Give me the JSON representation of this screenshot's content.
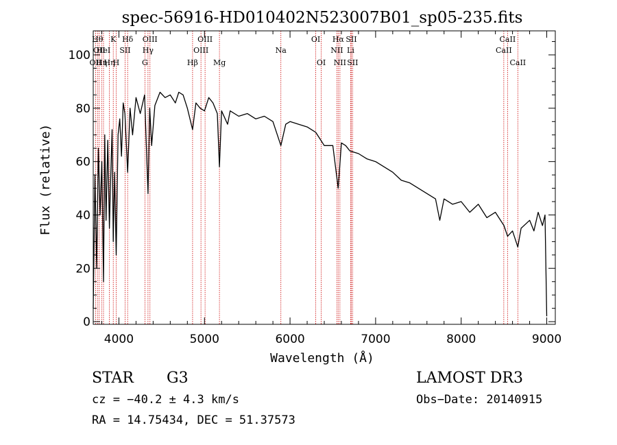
{
  "chart_data": {
    "type": "line",
    "title": "spec-56916-HD010402N523007B01_sp05-235.fits",
    "xlabel": "Wavelength (Å)",
    "ylabel": "Flux (relative)",
    "xlim": [
      3700,
      9100
    ],
    "ylim": [
      -1,
      109
    ],
    "x_ticks": [
      4000,
      5000,
      6000,
      7000,
      8000,
      9000
    ],
    "x_tick_labels": [
      "4000",
      "5000",
      "6000",
      "7000",
      "8000",
      "9000"
    ],
    "y_ticks": [
      0,
      20,
      40,
      60,
      80,
      100
    ],
    "y_tick_labels": [
      "0",
      "20",
      "40",
      "60",
      "80",
      "100"
    ],
    "series": [
      {
        "name": "flux",
        "x": [
          3700,
          3720,
          3740,
          3760,
          3780,
          3800,
          3820,
          3835,
          3850,
          3870,
          3889,
          3900,
          3920,
          3934,
          3950,
          3968,
          3990,
          4010,
          4030,
          4050,
          4070,
          4102,
          4130,
          4160,
          4200,
          4250,
          4300,
          4340,
          4360,
          4383,
          4420,
          4480,
          4540,
          4600,
          4660,
          4700,
          4750,
          4800,
          4861,
          4900,
          4950,
          5000,
          5050,
          5100,
          5150,
          5175,
          5200,
          5270,
          5300,
          5400,
          5500,
          5600,
          5700,
          5800,
          5893,
          5950,
          6000,
          6100,
          6200,
          6300,
          6360,
          6400,
          6500,
          6563,
          6600,
          6650,
          6700,
          6800,
          6900,
          7000,
          7100,
          7200,
          7300,
          7400,
          7500,
          7600,
          7700,
          7750,
          7800,
          7900,
          8000,
          8100,
          8200,
          8300,
          8400,
          8500,
          8542,
          8600,
          8662,
          8700,
          8800,
          8850,
          8900,
          8950,
          8980,
          9000
        ],
        "values": [
          5,
          55,
          20,
          65,
          40,
          60,
          15,
          70,
          38,
          68,
          35,
          50,
          72,
          30,
          56,
          25,
          70,
          76,
          62,
          82,
          78,
          56,
          80,
          70,
          84,
          78,
          85,
          48,
          80,
          66,
          81,
          86,
          84,
          85,
          82,
          86,
          85,
          80,
          72,
          82,
          80,
          79,
          84,
          82,
          78,
          58,
          79,
          74,
          79,
          77,
          78,
          76,
          77,
          75,
          66,
          74,
          75,
          74,
          73,
          71,
          68,
          66,
          66,
          50,
          67,
          66,
          64,
          63,
          61,
          60,
          58,
          56,
          53,
          52,
          50,
          48,
          46,
          38,
          46,
          44,
          45,
          41,
          44,
          39,
          41,
          36,
          32,
          34,
          28,
          35,
          38,
          34,
          41,
          36,
          40,
          2
        ]
      }
    ],
    "lines": [
      {
        "x": 3727,
        "label": "OII",
        "row": 2
      },
      {
        "x": 3750,
        "label": "Hθ",
        "row": 0
      },
      {
        "x": 3770,
        "label": "OII",
        "row": 1
      },
      {
        "x": 3798,
        "label": "Hη",
        "row": 2
      },
      {
        "x": 3820,
        "label": "HeI",
        "row": 1
      },
      {
        "x": 3889,
        "label": "Hη",
        "row": 2
      },
      {
        "x": 3934,
        "label": "K",
        "row": 0
      },
      {
        "x": 3968,
        "label": "H",
        "row": 2
      },
      {
        "x": 4072,
        "label": "SII",
        "row": 1
      },
      {
        "x": 4102,
        "label": "Hδ",
        "row": 0
      },
      {
        "x": 4304,
        "label": "G",
        "row": 2
      },
      {
        "x": 4340,
        "label": "Hγ",
        "row": 1
      },
      {
        "x": 4363,
        "label": "OIII",
        "row": 0
      },
      {
        "x": 4861,
        "label": "Hβ",
        "row": 2
      },
      {
        "x": 4959,
        "label": "OIII",
        "row": 1
      },
      {
        "x": 5007,
        "label": "OIII",
        "row": 0
      },
      {
        "x": 5175,
        "label": "Mg",
        "row": 2
      },
      {
        "x": 5893,
        "label": "Na",
        "row": 1
      },
      {
        "x": 6300,
        "label": "OI",
        "row": 0
      },
      {
        "x": 6364,
        "label": "OI",
        "row": 2
      },
      {
        "x": 6548,
        "label": "NII",
        "row": 1
      },
      {
        "x": 6563,
        "label": "Hα",
        "row": 0
      },
      {
        "x": 6583,
        "label": "NII",
        "row": 2
      },
      {
        "x": 6708,
        "label": "Li",
        "row": 1
      },
      {
        "x": 6716,
        "label": "SII",
        "row": 0
      },
      {
        "x": 6731,
        "label": "SII",
        "row": 2
      },
      {
        "x": 8498,
        "label": "CaII",
        "row": 1
      },
      {
        "x": 8542,
        "label": "CaII",
        "row": 0
      },
      {
        "x": 8662,
        "label": "CaII",
        "row": 2
      }
    ]
  },
  "info": {
    "object_type": "STAR",
    "subclass": "G3",
    "survey": "LAMOST DR3",
    "cz": "cz = −40.2 ± 4.3 km/s",
    "obs_date": "Obs−Date: 20140915",
    "radec": "RA =  14.75434, DEC =  51.37573"
  },
  "colors": {
    "line_marker": "#cc0000",
    "spectrum": "#000000",
    "axis": "#000000"
  }
}
